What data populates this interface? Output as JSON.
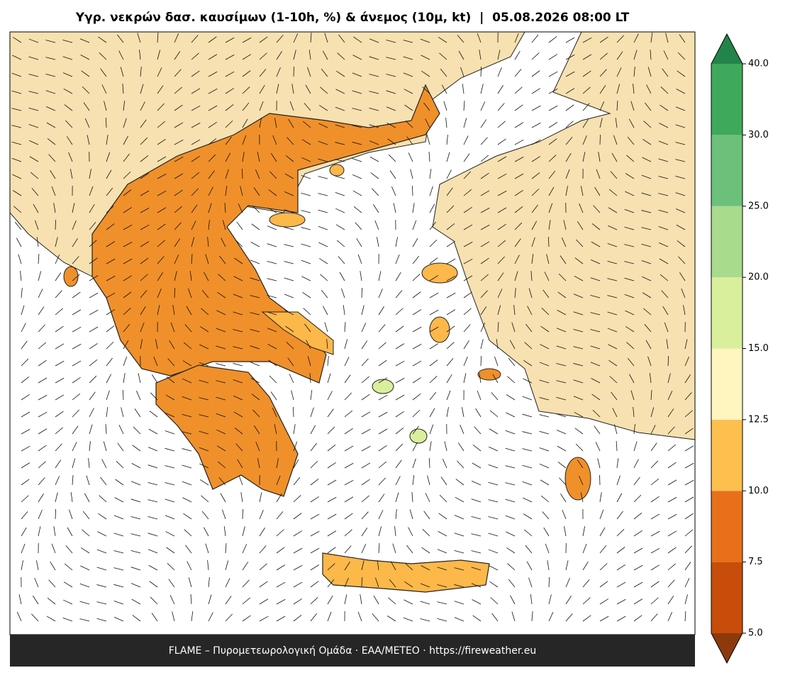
{
  "title": "Υγρ. νεκρών δασ. καυσίμων (1-10h, %) & άνεμος (10μ, kt)  |  05.08.2026 08:00 LT",
  "footer": "FLAME – Πυρομετεωρολογική Ομάδα · ΕΑΑ/METEO · https://fireweather.eu",
  "colorbar": {
    "ticks": [
      {
        "value": 5,
        "label": "5.0"
      },
      {
        "value": 7.5,
        "label": "7.5"
      },
      {
        "value": 10,
        "label": "10.0"
      },
      {
        "value": 12.5,
        "label": "12.5"
      },
      {
        "value": 15,
        "label": "15.0"
      },
      {
        "value": 20,
        "label": "20.0"
      },
      {
        "value": 25,
        "label": "25.0"
      },
      {
        "value": 30,
        "label": "30.0"
      },
      {
        "value": 40,
        "label": "40.0"
      }
    ],
    "colors": [
      "#c84c0a",
      "#e8701a",
      "#fdc04e",
      "#fff5bf",
      "#d9ef9b",
      "#a8db8c",
      "#6cc07a",
      "#3ea95b"
    ],
    "under_color": "#8c3a0c",
    "over_color": "#23844a"
  }
}
